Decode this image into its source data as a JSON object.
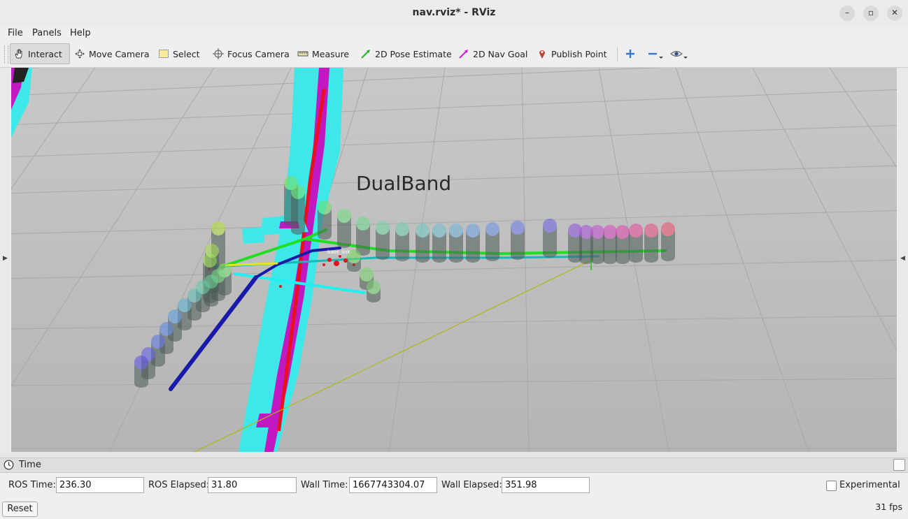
{
  "window": {
    "title": "nav.rviz* - RViz",
    "controls": {
      "minimize": "–",
      "maximize": "▫",
      "close": "✕"
    }
  },
  "menubar": {
    "items": [
      {
        "label": "File"
      },
      {
        "label": "Panels"
      },
      {
        "label": "Help"
      }
    ]
  },
  "toolbar": {
    "tools": [
      {
        "label": "Interact",
        "icon": "hand-icon",
        "active": true
      },
      {
        "label": "Move Camera",
        "icon": "move-camera-icon"
      },
      {
        "label": "Select",
        "icon": "select-box-icon"
      },
      {
        "label": "Focus Camera",
        "icon": "crosshair-icon"
      },
      {
        "label": "Measure",
        "icon": "ruler-icon"
      },
      {
        "label": "2D Pose Estimate",
        "icon": "green-arrow-icon",
        "color": "#22bb22"
      },
      {
        "label": "2D Nav Goal",
        "icon": "magenta-arrow-icon",
        "color": "#cc22cc"
      },
      {
        "label": "Publish Point",
        "icon": "map-pin-icon",
        "color": "#b5442e"
      }
    ],
    "extra": [
      "add-tool-icon",
      "remove-tool-icon",
      "view-eye-icon"
    ]
  },
  "viewport": {
    "overlay_text": "DualBand",
    "small_label": "base_link"
  },
  "time_panel": {
    "title": "Time",
    "ros_time_label": "ROS Time:",
    "ros_time": "236.30",
    "ros_elapsed_label": "ROS Elapsed:",
    "ros_elapsed": "31.80",
    "wall_time_label": "Wall Time:",
    "wall_time": "1667743304.07",
    "wall_elapsed_label": "Wall Elapsed:",
    "wall_elapsed": "351.98",
    "experimental_label": "Experimental",
    "reset_label": "Reset",
    "fps": "31 fps"
  }
}
